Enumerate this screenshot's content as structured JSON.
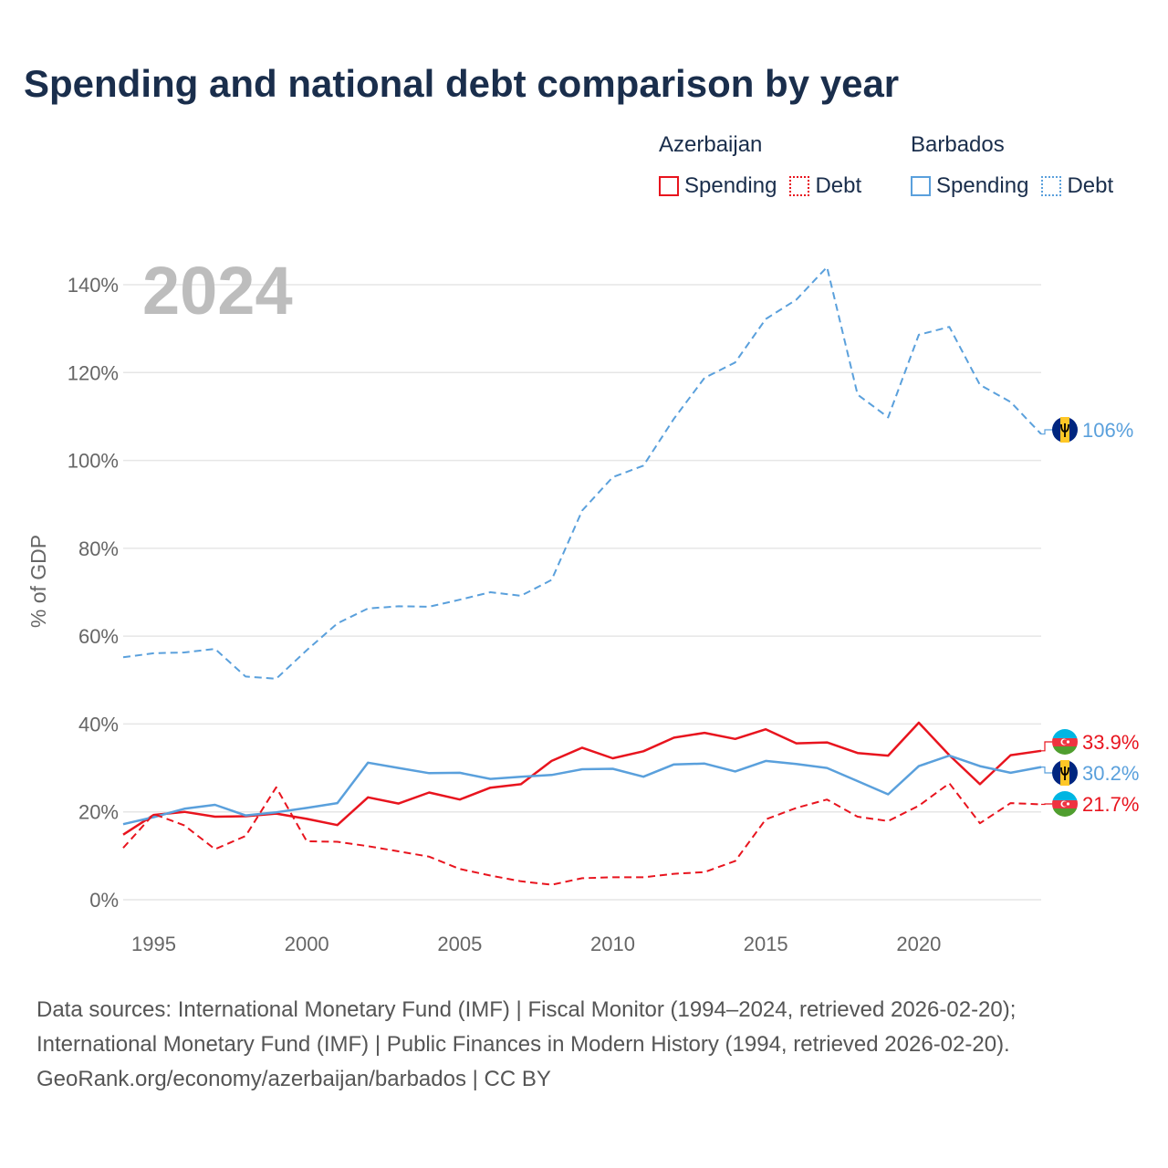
{
  "title": "Spending and national debt comparison by year",
  "legend": {
    "groups": [
      {
        "country": "Azerbaijan",
        "color": "#e8141e",
        "items": [
          {
            "label": "Spending",
            "style": "solid"
          },
          {
            "label": "Debt",
            "style": "dotted"
          }
        ]
      },
      {
        "country": "Barbados",
        "color": "#5aa0dc",
        "items": [
          {
            "label": "Spending",
            "style": "solid"
          },
          {
            "label": "Debt",
            "style": "dotted"
          }
        ]
      }
    ]
  },
  "footer": {
    "line1": "Data sources: International Monetary Fund (IMF) | Fiscal Monitor (1994–2024, retrieved 2026-02-20);",
    "line2": "International Monetary Fund (IMF) | Public Finances in Modern History (1994, retrieved 2026-02-20).",
    "line3": "GeoRank.org/economy/azerbaijan/barbados | CC BY"
  },
  "chart_data": {
    "type": "line",
    "year_label": "2024",
    "ylabel": "% of GDP",
    "xlabel": "",
    "xlim": [
      1994,
      2024
    ],
    "ylim": [
      0,
      140
    ],
    "yticks": [
      0,
      20,
      40,
      60,
      80,
      100,
      120,
      140
    ],
    "ytick_labels": [
      "0%",
      "20%",
      "40%",
      "60%",
      "80%",
      "100%",
      "120%",
      "140%"
    ],
    "xticks": [
      1995,
      2000,
      2005,
      2010,
      2015,
      2020
    ],
    "xtick_labels": [
      "1995",
      "2000",
      "2005",
      "2010",
      "2015",
      "2020"
    ],
    "grid": true,
    "x": [
      1994,
      1995,
      1996,
      1997,
      1998,
      1999,
      2000,
      2001,
      2002,
      2003,
      2004,
      2005,
      2006,
      2007,
      2008,
      2009,
      2010,
      2011,
      2012,
      2013,
      2014,
      2015,
      2016,
      2017,
      2018,
      2019,
      2020,
      2021,
      2022,
      2023,
      2024
    ],
    "series": [
      {
        "name": "Barbados Debt",
        "country": "Barbados",
        "metric": "Debt",
        "color": "#5aa0dc",
        "dash": "dashed",
        "values": [
          55.2,
          56.1,
          56.3,
          57.1,
          50.8,
          50.3,
          56.8,
          62.9,
          66.3,
          66.8,
          66.7,
          68.3,
          70.0,
          69.2,
          72.8,
          88.6,
          96.2,
          98.8,
          109.5,
          118.8,
          122.3,
          132.2,
          136.6,
          144.0,
          115.0,
          109.8,
          128.6,
          130.4,
          117.2,
          113.3,
          106.0
        ],
        "end_label": "106%"
      },
      {
        "name": "Azerbaijan Spending",
        "country": "Azerbaijan",
        "metric": "Spending",
        "color": "#e8141e",
        "dash": "solid",
        "values": [
          14.8,
          19.3,
          20.0,
          18.9,
          19.0,
          19.6,
          18.4,
          17.0,
          23.3,
          21.9,
          24.4,
          22.8,
          25.5,
          26.3,
          31.6,
          34.6,
          32.2,
          33.8,
          36.9,
          38.0,
          36.6,
          38.8,
          35.6,
          35.8,
          33.4,
          32.8,
          40.3,
          32.9,
          26.3,
          32.9,
          33.9
        ],
        "end_label": "33.9%"
      },
      {
        "name": "Barbados Spending",
        "country": "Barbados",
        "metric": "Spending",
        "color": "#5aa0dc",
        "dash": "solid",
        "values": [
          17.2,
          18.8,
          20.7,
          21.6,
          19.2,
          19.9,
          20.9,
          22.0,
          31.2,
          30.0,
          28.8,
          28.9,
          27.5,
          28.0,
          28.4,
          29.7,
          29.8,
          28.0,
          30.8,
          31.0,
          29.2,
          31.6,
          30.9,
          30.0,
          27.0,
          24.0,
          30.4,
          32.8,
          30.4,
          28.9,
          30.2
        ],
        "end_label": "30.2%"
      },
      {
        "name": "Azerbaijan Debt",
        "country": "Azerbaijan",
        "metric": "Debt",
        "color": "#e8141e",
        "dash": "dashed",
        "values": [
          11.8,
          19.5,
          16.9,
          11.5,
          14.5,
          25.6,
          13.3,
          13.2,
          12.2,
          11.0,
          9.8,
          7.0,
          5.5,
          4.2,
          3.4,
          4.9,
          5.1,
          5.1,
          5.9,
          6.3,
          8.8,
          18.3,
          20.9,
          22.8,
          18.9,
          17.9,
          21.4,
          26.5,
          17.4,
          22.0,
          21.7
        ],
        "end_label": "21.7%"
      }
    ]
  }
}
